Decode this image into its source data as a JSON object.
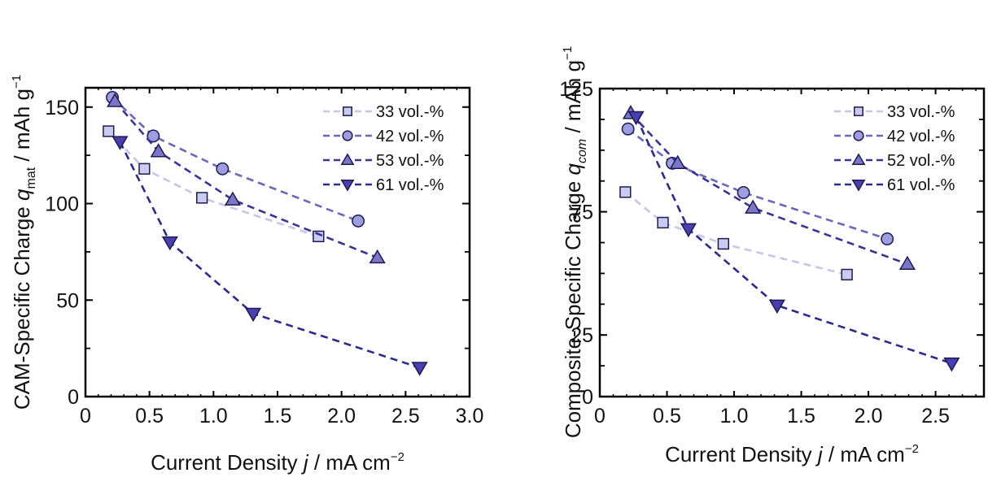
{
  "chart_data": [
    {
      "type": "line",
      "title": "",
      "xlabel": "Current Density j / mA cm⁻²",
      "xlabel_parts": {
        "pre": "Current Density ",
        "var": "j",
        "post": " / mA cm",
        "sup": "−2"
      },
      "ylabel": "CAM-Specific Charge q_mat / mAh g⁻¹",
      "ylabel_parts": {
        "pre": "CAM-Specific Charge ",
        "var": "q",
        "sub": "mat",
        "post": " / mAh g",
        "sup": "−1"
      },
      "xlim": [
        0,
        3.0
      ],
      "ylim": [
        0,
        160
      ],
      "xticks": [
        0,
        0.5,
        1.0,
        1.5,
        2.0,
        2.5,
        3.0
      ],
      "xtick_labels": [
        "0",
        "0.5",
        "1.0",
        "1.5",
        "2.0",
        "2.5",
        "3.0"
      ],
      "yticks": [
        0,
        50,
        100,
        150
      ],
      "ytick_labels": [
        "0",
        "50",
        "100",
        "150"
      ],
      "grid": false,
      "legend_position": "top-right",
      "series": [
        {
          "name": "33 vol.-%",
          "marker": "square",
          "line_color": "#c5c6ea",
          "fill": "#c9cbf0",
          "x": [
            0.18,
            0.46,
            0.91,
            1.82
          ],
          "y": [
            137.5,
            118,
            103,
            83
          ]
        },
        {
          "name": "42 vol.-%",
          "marker": "circle",
          "line_color": "#6a66b8",
          "fill": "#9d9de0",
          "x": [
            0.21,
            0.53,
            1.07,
            2.13
          ],
          "y": [
            155,
            135,
            118,
            91
          ]
        },
        {
          "name": "53 vol.-%",
          "marker": "triangle-up",
          "line_color": "#3a3394",
          "fill": "#7a76c8",
          "x": [
            0.23,
            0.57,
            1.15,
            2.28
          ],
          "y": [
            153,
            127,
            102,
            72
          ]
        },
        {
          "name": "61 vol.-%",
          "marker": "triangle-down",
          "line_color": "#2e2a8a",
          "fill": "#4a3fb0",
          "x": [
            0.27,
            0.66,
            1.31,
            2.61
          ],
          "y": [
            132,
            80,
            43,
            15
          ]
        }
      ]
    },
    {
      "type": "line",
      "title": "",
      "xlabel": "Current Density j / mA cm⁻²",
      "xlabel_parts": {
        "pre": "Current Density ",
        "var": "j",
        "post": " / mA cm",
        "sup": "−2"
      },
      "ylabel": "Composite-Specific Charge q_com / mAh g⁻¹",
      "ylabel_parts": {
        "pre": "Composite-Specific Charge ",
        "var": "q",
        "sub": "com",
        "post": " / mAh g",
        "sup": "−1"
      },
      "xlim": [
        0,
        2.86
      ],
      "ylim": [
        0,
        125
      ],
      "xticks": [
        0,
        0.5,
        1.0,
        1.5,
        2.0,
        2.5
      ],
      "xtick_labels": [
        "0",
        "0.5",
        "1.0",
        "1.5",
        "2.0",
        "2.5"
      ],
      "yticks": [
        0,
        25,
        75,
        125
      ],
      "ytick_labels": [
        "0",
        "25",
        "75",
        "125"
      ],
      "grid": false,
      "legend_position": "top-right",
      "series": [
        {
          "name": "33 vol.-%",
          "marker": "square",
          "line_color": "#c5c6ea",
          "fill": "#c9cbf0",
          "x": [
            0.19,
            0.47,
            0.92,
            1.84
          ],
          "y": [
            83,
            70.6,
            62,
            49.5
          ]
        },
        {
          "name": "42 vol.-%",
          "marker": "circle",
          "line_color": "#6a66b8",
          "fill": "#9d9de0",
          "x": [
            0.21,
            0.54,
            1.07,
            2.14
          ],
          "y": [
            108.6,
            94.7,
            82.8,
            64
          ]
        },
        {
          "name": "52 vol.-%",
          "marker": "triangle-up",
          "line_color": "#3a3394",
          "fill": "#7a76c8",
          "x": [
            0.23,
            0.58,
            1.14,
            2.29
          ],
          "y": [
            115,
            94.7,
            76.6,
            53.8
          ]
        },
        {
          "name": "61 vol.-%",
          "marker": "triangle-down",
          "line_color": "#2e2a8a",
          "fill": "#4a3fb0",
          "x": [
            0.27,
            0.66,
            1.32,
            2.62
          ],
          "y": [
            113.5,
            68,
            37,
            13.5
          ]
        }
      ]
    }
  ]
}
